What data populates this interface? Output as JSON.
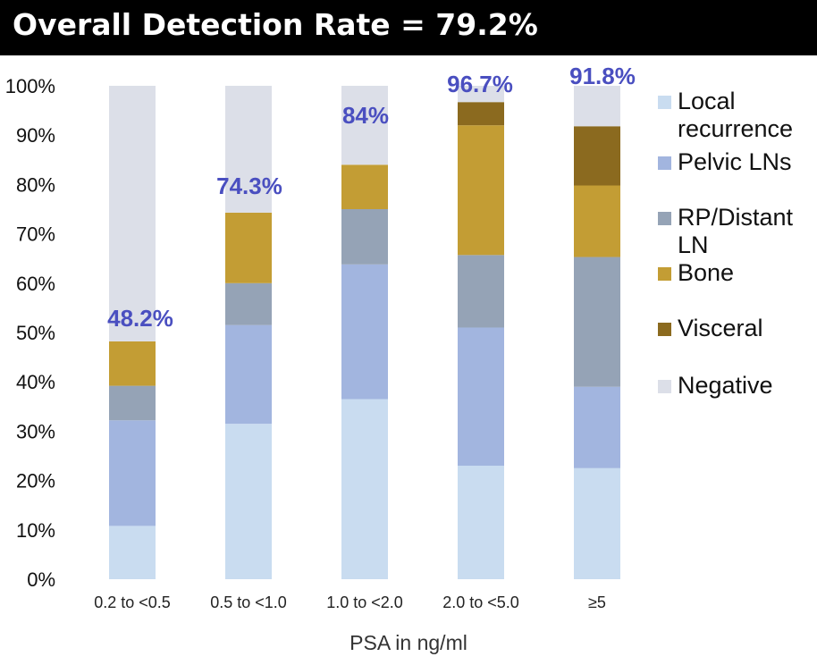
{
  "title": "Overall Detection Rate = 79.2%",
  "colors": {
    "title_bg": "#000000",
    "title_fg": "#ffffff",
    "rate_label": "#4a4fc0"
  },
  "chart_data": {
    "type": "bar",
    "stacked": true,
    "title": "Overall Detection Rate = 79.2%",
    "xlabel": "PSA in ng/ml",
    "ylabel": "",
    "ylim": [
      0,
      100
    ],
    "y_ticks": [
      "0%",
      "10%",
      "20%",
      "30%",
      "40%",
      "50%",
      "60%",
      "70%",
      "80%",
      "90%",
      "100%"
    ],
    "grid": false,
    "legend_position": "right",
    "categories": [
      "0.2 to <0.5",
      "0.5 to <1.0",
      "1.0 to <2.0",
      "2.0 to <5.0",
      "≥5"
    ],
    "detection_rate_labels": [
      "48.2%",
      "74.3%",
      "84%",
      "96.7%",
      "91.8%"
    ],
    "series": [
      {
        "name": "Local recurrence",
        "color": "#c9dcf0",
        "values": [
          10.8,
          31.5,
          36.5,
          23.0,
          22.5
        ]
      },
      {
        "name": "Pelvic LNs",
        "color": "#a2b5df",
        "values": [
          21.4,
          20.0,
          27.3,
          28.0,
          16.5
        ]
      },
      {
        "name": "RP/Distant LN",
        "color": "#95a3b6",
        "values": [
          7.0,
          8.5,
          11.2,
          14.7,
          26.3
        ]
      },
      {
        "name": "Bone",
        "color": "#c39d34",
        "values": [
          9.0,
          14.3,
          9.0,
          26.3,
          14.5
        ]
      },
      {
        "name": "Visceral",
        "color": "#8b6a1f",
        "values": [
          0,
          0,
          0,
          4.7,
          12.0
        ]
      },
      {
        "name": "Negative",
        "color": "#dcdfe8",
        "values": [
          51.8,
          25.7,
          16.0,
          3.3,
          8.2
        ]
      }
    ]
  }
}
